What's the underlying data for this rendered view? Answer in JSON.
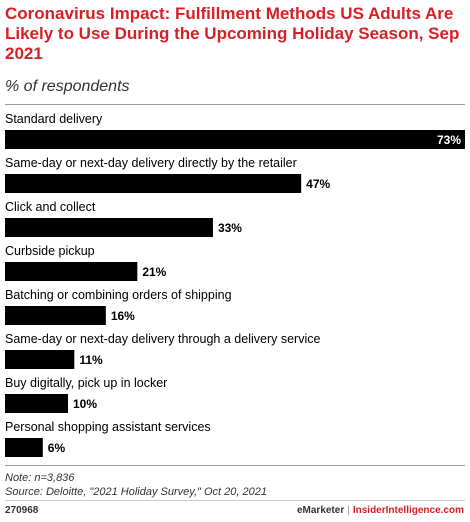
{
  "header": {
    "title": "Coronavirus Impact: Fulfillment Methods US Adults Are Likely to Use During the Upcoming Holiday Season, Sep 2021",
    "subtitle": "% of respondents"
  },
  "chart_data": {
    "type": "bar",
    "orientation": "horizontal",
    "categories": [
      "Standard delivery",
      "Same-day or next-day delivery directly by the retailer",
      "Click and collect",
      "Curbside pickup",
      "Batching or combining orders of shipping",
      "Same-day or next-day delivery through a delivery service",
      "Buy digitally, pick up in locker",
      "Personal shopping assistant services"
    ],
    "values": [
      73,
      47,
      33,
      21,
      16,
      11,
      10,
      6
    ],
    "value_labels": [
      "73%",
      "47%",
      "33%",
      "21%",
      "16%",
      "11%",
      "10%",
      "6%"
    ],
    "xlim": [
      0,
      73
    ],
    "bar_color": "#000000",
    "grid": false
  },
  "footer": {
    "note": "Note: n=3,836",
    "source": "Source: Deloitte, \"2021 Holiday Survey,\" Oct 20, 2021",
    "chart_id": "270968",
    "brand": "eMarketer",
    "separator": "|",
    "brand2": "InsiderIntelligence.com"
  }
}
